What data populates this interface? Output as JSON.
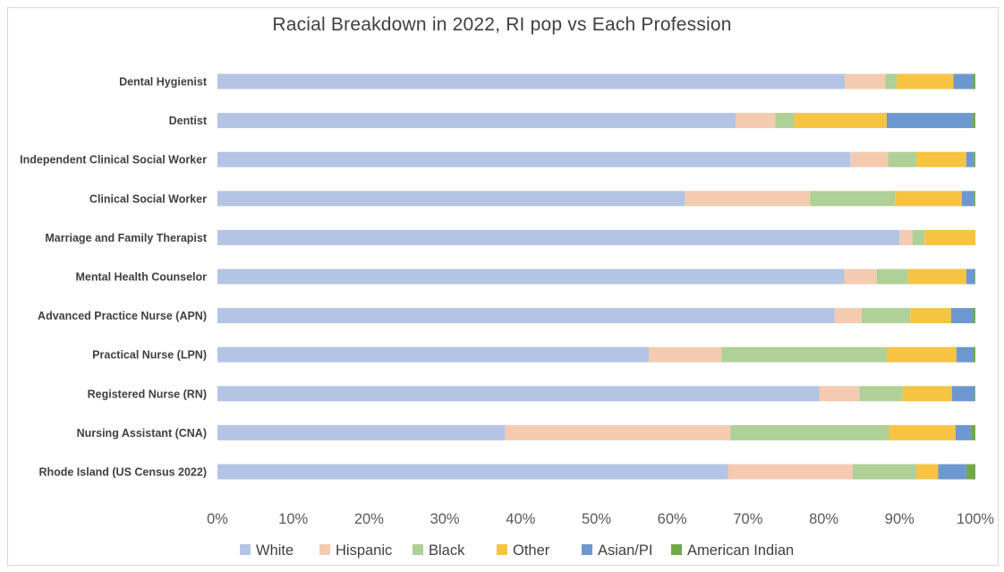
{
  "chart_data": {
    "type": "bar",
    "orientation": "horizontal",
    "stacked": "percent",
    "title": "Racial Breakdown in 2022, RI pop vs Each Profession",
    "xlabel": "",
    "ylabel": "",
    "xlim": [
      0,
      100
    ],
    "x_ticks": [
      "0%",
      "10%",
      "20%",
      "30%",
      "40%",
      "50%",
      "60%",
      "70%",
      "80%",
      "90%",
      "100%"
    ],
    "grid": false,
    "legend_position": "bottom",
    "categories": [
      "Dental Hygienist",
      "Dentist",
      "Independent Clinical Social Worker",
      "Clinical Social Worker",
      "Marriage and Family Therapist",
      "Mental Health Counselor",
      "Advanced Practice Nurse (APN)",
      "Practical Nurse (LPN)",
      "Registered Nurse (RN)",
      "Nursing Assistant (CNA)",
      "Rhode Island (US Census 2022)"
    ],
    "series": [
      {
        "name": "White",
        "color": "#b4c4e4",
        "values": [
          82.8,
          68.4,
          83.5,
          61.7,
          90.0,
          82.7,
          81.4,
          56.9,
          79.4,
          37.9,
          67.4
        ]
      },
      {
        "name": "Hispanic",
        "color": "#f4cbb0",
        "values": [
          5.3,
          5.2,
          5.0,
          16.5,
          1.7,
          4.3,
          3.6,
          9.6,
          5.3,
          29.8,
          16.4
        ]
      },
      {
        "name": "Black",
        "color": "#afd096",
        "values": [
          1.5,
          2.5,
          3.7,
          11.2,
          1.6,
          4.1,
          6.4,
          21.8,
          5.7,
          20.9,
          8.4
        ]
      },
      {
        "name": "Other",
        "color": "#f6c343",
        "values": [
          7.5,
          12.2,
          6.6,
          8.8,
          6.7,
          7.7,
          5.4,
          9.2,
          6.5,
          8.8,
          2.9
        ]
      },
      {
        "name": "Asian/PI",
        "color": "#6d98cf",
        "values": [
          2.6,
          11.3,
          1.0,
          1.6,
          0.0,
          1.1,
          2.9,
          2.2,
          3.0,
          2.0,
          3.7
        ]
      },
      {
        "name": "American Indian",
        "color": "#70a84a",
        "values": [
          0.3,
          0.4,
          0.2,
          0.2,
          0.0,
          0.1,
          0.3,
          0.3,
          0.1,
          0.6,
          1.2
        ]
      }
    ]
  }
}
